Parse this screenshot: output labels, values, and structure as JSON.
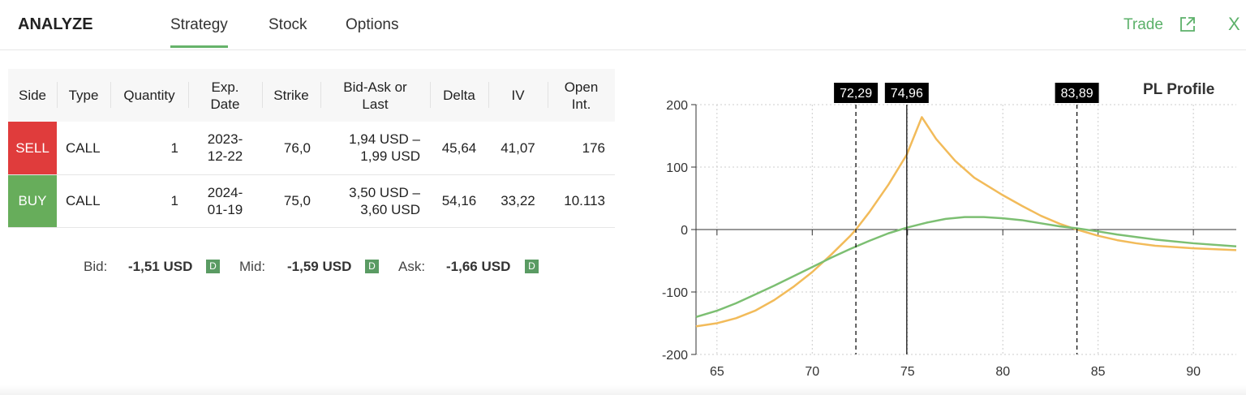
{
  "header": {
    "title": "ANALYZE",
    "tabs": [
      {
        "label": "Strategy",
        "active": true
      },
      {
        "label": "Stock"
      },
      {
        "label": "Options"
      }
    ],
    "trade_label": "Trade",
    "icons": [
      "external-link-icon",
      "close-icon"
    ],
    "close_glyph": "X"
  },
  "table": {
    "columns": [
      "Side",
      "Type",
      "Quantity",
      "Exp.\nDate",
      "Strike",
      "Bid-Ask or\nLast",
      "Delta",
      "IV",
      "Open\nInt."
    ],
    "rows": [
      {
        "side": "SELL",
        "type": "CALL",
        "quantity": "1",
        "exp1": "2023-",
        "exp2": "12-22",
        "strike": "76,0",
        "ba1": "1,94 USD –",
        "ba2": "1,99 USD",
        "delta": "45,64",
        "iv": "41,07",
        "oi": "176"
      },
      {
        "side": "BUY",
        "type": "CALL",
        "quantity": "1",
        "exp1": "2024-",
        "exp2": "01-19",
        "strike": "75,0",
        "ba1": "3,50 USD –",
        "ba2": "3,60 USD",
        "delta": "54,16",
        "iv": "33,22",
        "oi": "10.113"
      }
    ]
  },
  "summary": {
    "bid_label": "Bid:",
    "bid": "-1,51 USD",
    "mid_label": "Mid:",
    "mid": "-1,59 USD",
    "ask_label": "Ask:",
    "ask": "-1,66 USD",
    "badge": "D"
  },
  "colors": {
    "sell": "#e03c3c",
    "buy": "#67ad5b",
    "accent": "#5cb16a",
    "expiration_curve": "#f2bb5a",
    "today_curve": "#7cbf72"
  },
  "chart_data": {
    "type": "line",
    "title": "PL Profile",
    "xlim": [
      63.9,
      92.25
    ],
    "ylim": [
      -200,
      200
    ],
    "xticks": [
      "65",
      "70",
      "75",
      "80",
      "85",
      "90"
    ],
    "yticks": [
      "200",
      "100",
      "0",
      "-100",
      "-200"
    ],
    "grid": true,
    "markers": [
      {
        "x": 72.29,
        "label": "72,29",
        "style": "dashed"
      },
      {
        "x": 74.96,
        "label": "74,96",
        "style": "solid"
      },
      {
        "x": 83.89,
        "label": "83,89",
        "style": "dashed"
      }
    ],
    "series": [
      {
        "color": "#f2bb5a",
        "points": [
          [
            63.9,
            -155
          ],
          [
            65,
            -150
          ],
          [
            66,
            -142
          ],
          [
            67,
            -130
          ],
          [
            68,
            -113
          ],
          [
            69,
            -92
          ],
          [
            70,
            -68
          ],
          [
            71,
            -40
          ],
          [
            72,
            -10
          ],
          [
            72.29,
            0
          ],
          [
            73,
            28
          ],
          [
            74,
            72
          ],
          [
            74.96,
            120
          ],
          [
            75.75,
            180
          ],
          [
            76.5,
            145
          ],
          [
            77.5,
            110
          ],
          [
            78.5,
            83
          ],
          [
            80,
            55
          ],
          [
            81,
            38
          ],
          [
            82,
            22
          ],
          [
            83,
            9
          ],
          [
            83.89,
            0
          ],
          [
            85,
            -10
          ],
          [
            86,
            -17
          ],
          [
            87,
            -22
          ],
          [
            88,
            -26
          ],
          [
            90,
            -30
          ],
          [
            92.25,
            -33
          ]
        ]
      },
      {
        "color": "#7cbf72",
        "points": [
          [
            63.9,
            -140
          ],
          [
            65,
            -130
          ],
          [
            66,
            -118
          ],
          [
            67,
            -104
          ],
          [
            68,
            -90
          ],
          [
            69,
            -75
          ],
          [
            70,
            -60
          ],
          [
            71,
            -45
          ],
          [
            72,
            -31
          ],
          [
            73,
            -18
          ],
          [
            74,
            -6
          ],
          [
            74.96,
            3
          ],
          [
            76,
            11
          ],
          [
            77,
            17
          ],
          [
            78,
            20
          ],
          [
            79,
            20
          ],
          [
            80,
            18
          ],
          [
            81,
            15
          ],
          [
            82,
            10
          ],
          [
            83,
            5
          ],
          [
            83.89,
            2
          ],
          [
            85,
            -3
          ],
          [
            86,
            -8
          ],
          [
            87,
            -12
          ],
          [
            88,
            -16
          ],
          [
            90,
            -22
          ],
          [
            92.25,
            -27
          ]
        ]
      }
    ]
  }
}
